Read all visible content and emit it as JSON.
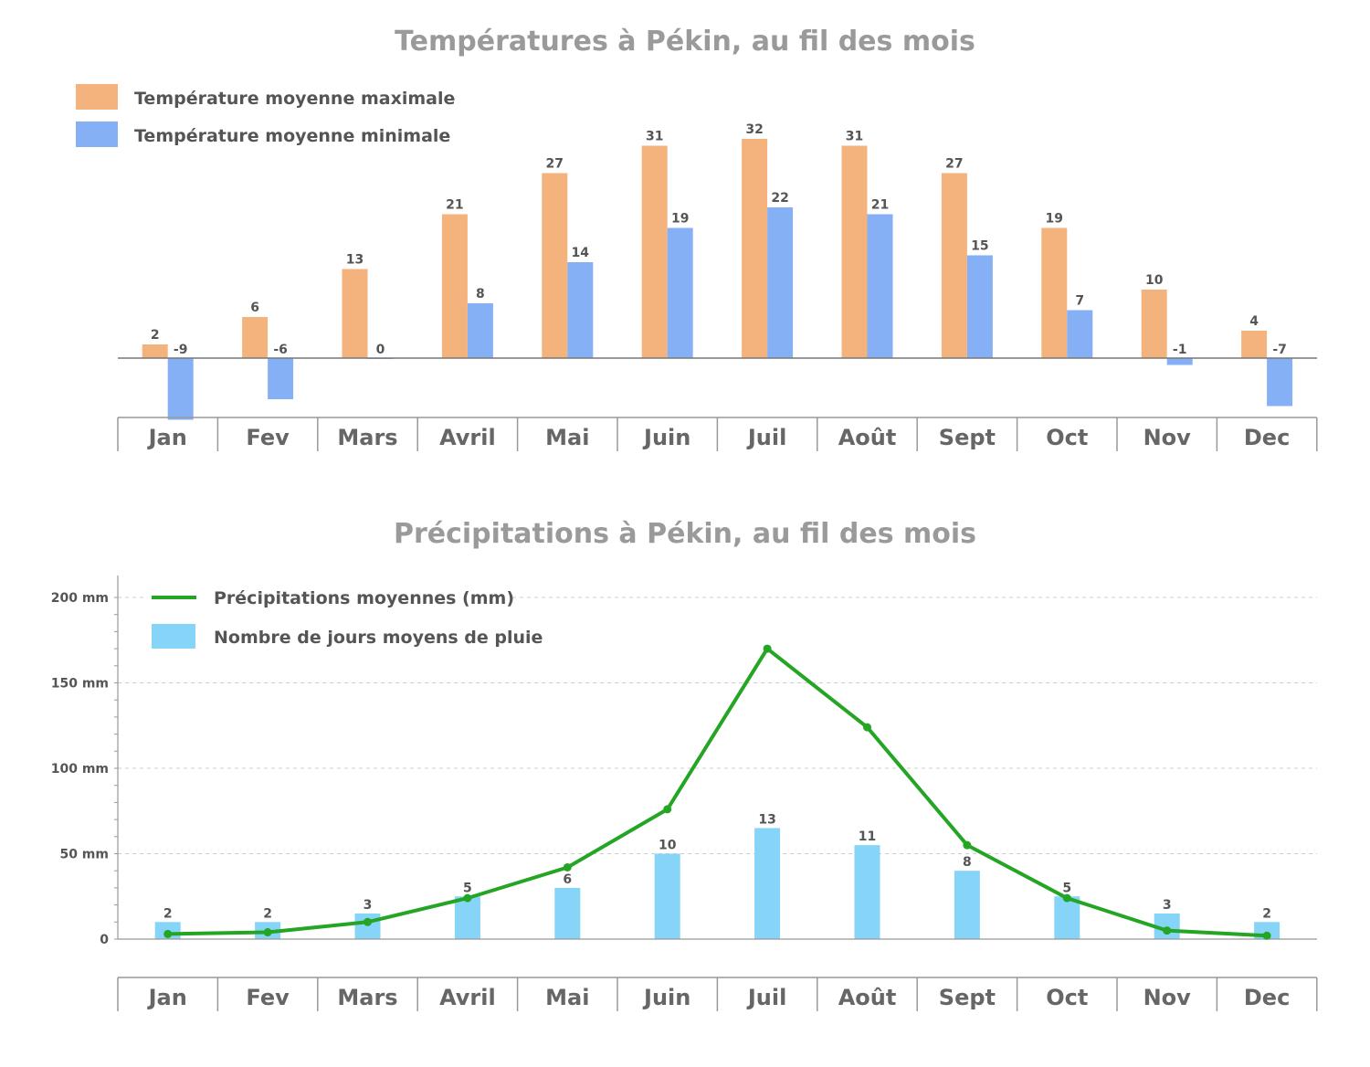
{
  "colors": {
    "title": "#9a9a9a",
    "text": "#555555",
    "max_temp": "#f4b27c",
    "min_temp": "#86b0f5",
    "rain_days": "#86d4f7",
    "precip_line": "#24a524",
    "axis": "#999999",
    "grid": "#cccccc"
  },
  "months": [
    "Jan",
    "Fev",
    "Mars",
    "Avril",
    "Mai",
    "Juin",
    "Juil",
    "Août",
    "Sept",
    "Oct",
    "Nov",
    "Dec"
  ],
  "chart_data": [
    {
      "type": "bar",
      "title": "Températures à Pékin, au fil des mois",
      "categories": [
        "Jan",
        "Fev",
        "Mars",
        "Avril",
        "Mai",
        "Juin",
        "Juil",
        "Août",
        "Sept",
        "Oct",
        "Nov",
        "Dec"
      ],
      "series": [
        {
          "name": "Température moyenne maximale",
          "color": "#f4b27c",
          "values": [
            2,
            6,
            13,
            21,
            27,
            31,
            32,
            31,
            27,
            19,
            10,
            4
          ]
        },
        {
          "name": "Température moyenne minimale",
          "color": "#86b0f5",
          "values": [
            -9,
            -6,
            0,
            8,
            14,
            19,
            22,
            21,
            15,
            7,
            -1,
            -7
          ]
        }
      ],
      "data_labels": true,
      "y_axis_visible": false,
      "grid": false,
      "legend_position": "top-left"
    },
    {
      "type": "bar+line",
      "title": "Précipitations à Pékin, au fil des mois",
      "categories": [
        "Jan",
        "Fev",
        "Mars",
        "Avril",
        "Mai",
        "Juin",
        "Juil",
        "Août",
        "Sept",
        "Oct",
        "Nov",
        "Dec"
      ],
      "yticks": [
        "0",
        "50 mm",
        "100 mm",
        "150 mm",
        "200 mm"
      ],
      "ylim": [
        0,
        200
      ],
      "series": [
        {
          "name": "Précipitations moyennes (mm)",
          "kind": "line",
          "color": "#24a524",
          "values": [
            3,
            4,
            10,
            24,
            42,
            76,
            170,
            124,
            55,
            24,
            5,
            2
          ]
        },
        {
          "name": "Nombre de jours moyens de pluie",
          "kind": "bar",
          "color": "#86d4f7",
          "values": [
            2,
            2,
            3,
            5,
            6,
            10,
            13,
            11,
            8,
            5,
            3,
            2
          ]
        }
      ],
      "data_labels_for": "Nombre de jours moyens de pluie",
      "grid": true,
      "legend_position": "top-left"
    }
  ]
}
